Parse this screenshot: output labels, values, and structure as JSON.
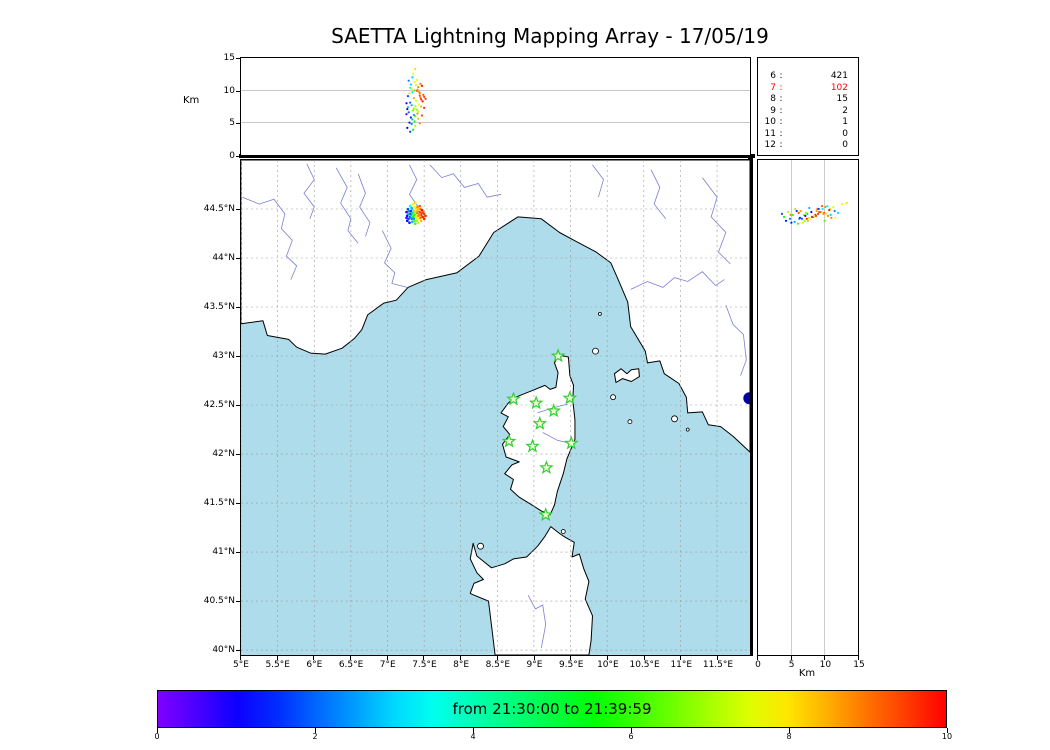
{
  "title": "SAETTA Lightning Mapping Array - 17/05/19",
  "axes": {
    "alt_label": "Km",
    "km_axis_label": "Km",
    "alt_ticks": [
      0,
      5,
      10,
      15
    ],
    "alt_grid": [
      5,
      10
    ],
    "alt_range": [
      0,
      15
    ],
    "lat_range": [
      39.95,
      45.0
    ],
    "lon_range": [
      5.0,
      11.95
    ],
    "lat_ticks": [
      {
        "v": 44.5,
        "label": "44.5°N"
      },
      {
        "v": 44.0,
        "label": "44°N"
      },
      {
        "v": 43.5,
        "label": "43.5°N"
      },
      {
        "v": 43.0,
        "label": "43°N"
      },
      {
        "v": 42.5,
        "label": "42.5°N"
      },
      {
        "v": 42.0,
        "label": "42°N"
      },
      {
        "v": 41.5,
        "label": "41.5°N"
      },
      {
        "v": 41.0,
        "label": "41°N"
      },
      {
        "v": 40.5,
        "label": "40.5°N"
      },
      {
        "v": 40.0,
        "label": "40°N"
      }
    ],
    "lon_ticks": [
      {
        "v": 5.0,
        "label": "5°E"
      },
      {
        "v": 5.5,
        "label": "5.5°E"
      },
      {
        "v": 6.0,
        "label": "6°E"
      },
      {
        "v": 6.5,
        "label": "6.5°E"
      },
      {
        "v": 7.0,
        "label": "7°E"
      },
      {
        "v": 7.5,
        "label": "7.5°E"
      },
      {
        "v": 8.0,
        "label": "8°E"
      },
      {
        "v": 8.5,
        "label": "8.5°E"
      },
      {
        "v": 9.0,
        "label": "9°E"
      },
      {
        "v": 9.5,
        "label": "9.5°E"
      },
      {
        "v": 10.0,
        "label": "10°E"
      },
      {
        "v": 10.5,
        "label": "10.5°E"
      },
      {
        "v": 11.0,
        "label": "11°E"
      },
      {
        "v": 11.5,
        "label": "11.5°E"
      }
    ]
  },
  "stats": {
    "rows": [
      {
        "label": "6",
        "value": "421",
        "color": "#000000"
      },
      {
        "label": "7",
        "value": "102",
        "color": "#ff0000"
      },
      {
        "label": "8",
        "value": "15",
        "color": "#000000"
      },
      {
        "label": "9",
        "value": "2",
        "color": "#000000"
      },
      {
        "label": "10",
        "value": "1",
        "color": "#000000"
      },
      {
        "label": "11",
        "value": "0",
        "color": "#000000"
      },
      {
        "label": "12",
        "value": "0",
        "color": "#000000"
      }
    ]
  },
  "colorbar": {
    "label": "from 21:30:00 to 21:39:59",
    "ticks": [
      0,
      2,
      4,
      6,
      8,
      10
    ],
    "min": 0,
    "max": 10,
    "hue_start": 270,
    "hue_end": 0
  },
  "chart_data": {
    "type": "scatter",
    "title": "SAETTA Lightning Mapping Array - 17/05/19",
    "time_window": "from 21:30:00 to 21:39:59",
    "colormap": "rainbow over 0-10 (minutes within time window)",
    "panels": [
      "altitude-km-vs-longitude",
      "map-latitude-vs-longitude",
      "altitude-km-vs-latitude"
    ],
    "station_counts": {
      "6": 421,
      "7": 102,
      "8": 15,
      "9": 2,
      "10": 1,
      "11": 0,
      "12": 0
    },
    "station_color": "#32cd32",
    "stations_lon_lat": [
      [
        9.33,
        43.0
      ],
      [
        8.72,
        42.56
      ],
      [
        9.03,
        42.52
      ],
      [
        9.27,
        42.44
      ],
      [
        9.49,
        42.57
      ],
      [
        9.08,
        42.31
      ],
      [
        8.66,
        42.13
      ],
      [
        8.98,
        42.08
      ],
      [
        9.51,
        42.11
      ],
      [
        9.17,
        41.86
      ],
      [
        9.16,
        41.38
      ]
    ],
    "points_lon_lat_km_time": [
      [
        7.3,
        44.47,
        9.5,
        8.2
      ],
      [
        7.33,
        44.45,
        10.2,
        7.9
      ],
      [
        7.36,
        44.48,
        8.8,
        8.5
      ],
      [
        7.4,
        44.46,
        9.9,
        9.1
      ],
      [
        7.42,
        44.43,
        10.5,
        8.8
      ],
      [
        7.38,
        44.41,
        7.6,
        7.2
      ],
      [
        7.35,
        44.44,
        6.9,
        6.5
      ],
      [
        7.31,
        44.42,
        8.1,
        2.1
      ],
      [
        7.28,
        44.45,
        7.4,
        2.8
      ],
      [
        7.44,
        44.47,
        9.2,
        9.4
      ],
      [
        7.46,
        44.44,
        8.6,
        9.7
      ],
      [
        7.39,
        44.5,
        10.8,
        8.0
      ],
      [
        7.37,
        44.52,
        11.3,
        7.5
      ],
      [
        7.34,
        44.5,
        9.7,
        3.2
      ],
      [
        7.41,
        44.52,
        10.1,
        8.9
      ],
      [
        7.45,
        44.5,
        8.9,
        9.0
      ],
      [
        7.32,
        44.48,
        5.8,
        1.5
      ],
      [
        7.36,
        44.4,
        6.2,
        2.4
      ],
      [
        7.4,
        44.38,
        7.0,
        6.8
      ],
      [
        7.43,
        44.4,
        7.8,
        7.7
      ],
      [
        7.29,
        44.4,
        6.6,
        1.9
      ],
      [
        7.27,
        44.43,
        7.1,
        1.2
      ],
      [
        7.34,
        44.37,
        5.5,
        2.6
      ],
      [
        7.38,
        44.35,
        6.0,
        6.1
      ],
      [
        7.42,
        44.36,
        6.7,
        7.3
      ],
      [
        7.46,
        44.38,
        7.5,
        8.4
      ],
      [
        7.48,
        44.42,
        8.3,
        9.8
      ],
      [
        7.5,
        44.45,
        9.0,
        9.5
      ],
      [
        7.35,
        44.55,
        12.6,
        7.8
      ],
      [
        7.38,
        44.56,
        13.3,
        8.1
      ],
      [
        7.31,
        44.53,
        10.4,
        3.5
      ],
      [
        7.28,
        44.5,
        9.1,
        1.7
      ],
      [
        7.26,
        44.47,
        8.0,
        0.9
      ],
      [
        7.33,
        44.4,
        4.8,
        2.2
      ],
      [
        7.37,
        44.44,
        5.2,
        5.8
      ],
      [
        7.41,
        44.48,
        6.4,
        8.6
      ],
      [
        7.44,
        44.53,
        9.6,
        9.2
      ],
      [
        7.47,
        44.49,
        10.7,
        9.9
      ],
      [
        7.3,
        44.36,
        5.0,
        1.4
      ],
      [
        7.26,
        44.41,
        6.3,
        0.6
      ],
      [
        7.52,
        44.43,
        8.7,
        9.6
      ],
      [
        7.49,
        44.47,
        9.3,
        9.3
      ],
      [
        7.36,
        44.46,
        7.2,
        6.9
      ],
      [
        7.39,
        44.43,
        8.4,
        7.4
      ],
      [
        7.43,
        44.45,
        9.8,
        8.7
      ],
      [
        7.32,
        44.44,
        10.9,
        2.9
      ],
      [
        7.29,
        44.48,
        11.5,
        2.3
      ],
      [
        7.35,
        44.42,
        3.9,
        5.5
      ],
      [
        7.38,
        44.47,
        4.5,
        7.0
      ],
      [
        7.42,
        44.5,
        5.6,
        8.3
      ],
      [
        7.45,
        44.41,
        11.0,
        9.0
      ],
      [
        7.27,
        44.38,
        4.2,
        1.1
      ],
      [
        7.5,
        44.4,
        7.3,
        9.7
      ],
      [
        7.34,
        44.46,
        12.0,
        3.0
      ],
      [
        7.4,
        44.41,
        11.6,
        7.6
      ],
      [
        7.37,
        44.38,
        10.0,
        6.3
      ],
      [
        7.31,
        44.45,
        3.6,
        1.8
      ],
      [
        7.44,
        44.44,
        4.9,
        8.9
      ],
      [
        7.47,
        44.46,
        6.1,
        9.4
      ],
      [
        7.33,
        44.51,
        7.7,
        2.7
      ]
    ]
  },
  "map": {
    "sea_color": "#aedcea",
    "land_color": "#ffffff",
    "coast_color": "#000000",
    "river_color": "#7b7fd4",
    "grid_color": "#999999",
    "panel_grid_color": "#b5b5b5",
    "lake": {
      "lon": 11.94,
      "lat": 42.57,
      "r": 6,
      "color": "#0000a0"
    },
    "outlines": {
      "mainland": [
        [
          5.0,
          45.0
        ],
        [
          5.0,
          43.33
        ],
        [
          5.3,
          43.36
        ],
        [
          5.36,
          43.21
        ],
        [
          5.65,
          43.17
        ],
        [
          5.76,
          43.09
        ],
        [
          5.95,
          43.03
        ],
        [
          6.15,
          43.02
        ],
        [
          6.38,
          43.08
        ],
        [
          6.55,
          43.18
        ],
        [
          6.65,
          43.27
        ],
        [
          6.73,
          43.42
        ],
        [
          6.95,
          43.54
        ],
        [
          7.12,
          43.57
        ],
        [
          7.28,
          43.7
        ],
        [
          7.53,
          43.78
        ],
        [
          7.95,
          43.85
        ],
        [
          8.25,
          44.02
        ],
        [
          8.45,
          44.26
        ],
        [
          8.78,
          44.42
        ],
        [
          9.1,
          44.4
        ],
        [
          9.35,
          44.26
        ],
        [
          9.55,
          44.18
        ],
        [
          9.85,
          44.06
        ],
        [
          10.05,
          43.95
        ],
        [
          10.15,
          43.78
        ],
        [
          10.28,
          43.55
        ],
        [
          10.32,
          43.3
        ],
        [
          10.52,
          43.05
        ],
        [
          10.55,
          42.93
        ],
        [
          10.72,
          42.95
        ],
        [
          10.78,
          42.82
        ],
        [
          10.98,
          42.72
        ],
        [
          11.08,
          42.58
        ],
        [
          11.1,
          42.42
        ],
        [
          11.3,
          42.43
        ],
        [
          11.38,
          42.3
        ],
        [
          11.55,
          42.28
        ],
        [
          11.72,
          42.18
        ],
        [
          11.95,
          42.02
        ],
        [
          11.95,
          45.0
        ]
      ],
      "corsica": [
        [
          9.34,
          43.01
        ],
        [
          9.47,
          42.99
        ],
        [
          9.49,
          42.8
        ],
        [
          9.54,
          42.7
        ],
        [
          9.53,
          42.55
        ],
        [
          9.56,
          42.35
        ],
        [
          9.56,
          42.15
        ],
        [
          9.45,
          41.95
        ],
        [
          9.4,
          41.8
        ],
        [
          9.32,
          41.62
        ],
        [
          9.28,
          41.48
        ],
        [
          9.22,
          41.38
        ],
        [
          9.1,
          41.42
        ],
        [
          8.93,
          41.5
        ],
        [
          8.8,
          41.56
        ],
        [
          8.68,
          41.64
        ],
        [
          8.72,
          41.74
        ],
        [
          8.6,
          41.8
        ],
        [
          8.7,
          41.89
        ],
        [
          8.8,
          41.92
        ],
        [
          8.62,
          41.97
        ],
        [
          8.57,
          42.1
        ],
        [
          8.67,
          42.2
        ],
        [
          8.58,
          42.28
        ],
        [
          8.65,
          42.38
        ],
        [
          8.55,
          42.42
        ],
        [
          8.65,
          42.52
        ],
        [
          8.75,
          42.58
        ],
        [
          8.95,
          42.64
        ],
        [
          9.15,
          42.7
        ],
        [
          9.22,
          42.66
        ],
        [
          9.3,
          42.68
        ],
        [
          9.33,
          42.83
        ],
        [
          9.28,
          42.93
        ]
      ],
      "sardinia": [
        [
          8.47,
          39.95
        ],
        [
          8.42,
          40.25
        ],
        [
          8.38,
          40.5
        ],
        [
          8.15,
          40.57
        ],
        [
          8.13,
          40.58
        ],
        [
          8.18,
          40.68
        ],
        [
          8.31,
          40.72
        ],
        [
          8.22,
          40.79
        ],
        [
          8.13,
          40.93
        ],
        [
          8.17,
          41.09
        ],
        [
          8.22,
          40.96
        ],
        [
          8.32,
          40.9
        ],
        [
          8.42,
          40.84
        ],
        [
          8.6,
          40.88
        ],
        [
          8.72,
          40.93
        ],
        [
          8.9,
          40.95
        ],
        [
          9.05,
          41.06
        ],
        [
          9.15,
          41.16
        ],
        [
          9.23,
          41.26
        ],
        [
          9.35,
          41.19
        ],
        [
          9.43,
          41.15
        ],
        [
          9.55,
          41.1
        ],
        [
          9.52,
          40.95
        ],
        [
          9.62,
          40.98
        ],
        [
          9.68,
          40.83
        ],
        [
          9.75,
          40.7
        ],
        [
          9.7,
          40.52
        ],
        [
          9.8,
          40.35
        ],
        [
          9.78,
          40.1
        ],
        [
          9.75,
          39.95
        ]
      ],
      "elba": [
        [
          10.1,
          42.82
        ],
        [
          10.19,
          42.87
        ],
        [
          10.27,
          42.82
        ],
        [
          10.33,
          42.86
        ],
        [
          10.43,
          42.87
        ],
        [
          10.44,
          42.79
        ],
        [
          10.33,
          42.74
        ],
        [
          10.21,
          42.77
        ],
        [
          10.12,
          42.73
        ]
      ]
    },
    "islands": [
      [
        9.84,
        43.05,
        3
      ],
      [
        9.9,
        43.43,
        1.5
      ],
      [
        10.08,
        42.58,
        2.5
      ],
      [
        10.31,
        42.33,
        2
      ],
      [
        10.92,
        42.36,
        3
      ],
      [
        11.1,
        42.25,
        1.5
      ],
      [
        8.27,
        41.06,
        3
      ],
      [
        9.4,
        41.21,
        2
      ]
    ],
    "rivers": [
      [
        [
          5.02,
          44.62
        ],
        [
          5.25,
          44.55
        ],
        [
          5.45,
          44.6
        ],
        [
          5.6,
          44.45
        ],
        [
          5.55,
          44.3
        ],
        [
          5.7,
          44.18
        ],
        [
          5.62,
          44.02
        ],
        [
          5.76,
          43.92
        ],
        [
          5.68,
          43.78
        ]
      ],
      [
        [
          6.93,
          44.28
        ],
        [
          7.05,
          44.1
        ],
        [
          6.96,
          43.95
        ],
        [
          7.1,
          43.85
        ],
        [
          7.06,
          43.74
        ],
        [
          7.27,
          43.7
        ]
      ],
      [
        [
          6.3,
          44.92
        ],
        [
          6.45,
          44.72
        ],
        [
          6.36,
          44.56
        ],
        [
          6.5,
          44.4
        ],
        [
          6.46,
          44.28
        ],
        [
          6.6,
          44.15
        ]
      ],
      [
        [
          7.58,
          44.95
        ],
        [
          7.74,
          44.82
        ],
        [
          7.9,
          44.86
        ],
        [
          8.05,
          44.72
        ],
        [
          8.24,
          44.76
        ],
        [
          8.36,
          44.62
        ],
        [
          8.55,
          44.65
        ]
      ],
      [
        [
          5.9,
          44.96
        ],
        [
          6.0,
          44.8
        ],
        [
          5.86,
          44.66
        ],
        [
          6.0,
          44.52
        ],
        [
          5.94,
          44.4
        ]
      ],
      [
        [
          6.6,
          44.86
        ],
        [
          6.7,
          44.66
        ],
        [
          6.62,
          44.52
        ],
        [
          6.76,
          44.36
        ],
        [
          6.7,
          44.22
        ]
      ],
      [
        [
          10.32,
          43.68
        ],
        [
          10.55,
          43.76
        ],
        [
          10.76,
          43.7
        ],
        [
          10.92,
          43.8
        ],
        [
          11.1,
          43.76
        ],
        [
          11.3,
          43.86
        ],
        [
          11.48,
          43.72
        ],
        [
          11.6,
          43.78
        ]
      ],
      [
        [
          11.3,
          44.82
        ],
        [
          11.5,
          44.62
        ],
        [
          11.42,
          44.42
        ],
        [
          11.62,
          44.26
        ],
        [
          11.52,
          44.06
        ],
        [
          11.68,
          43.94
        ]
      ],
      [
        [
          11.62,
          43.52
        ],
        [
          11.72,
          43.32
        ],
        [
          11.86,
          43.22
        ],
        [
          11.9,
          42.96
        ],
        [
          11.82,
          42.8
        ]
      ],
      [
        [
          8.92,
          40.56
        ],
        [
          9.02,
          40.42
        ],
        [
          9.12,
          40.46
        ],
        [
          9.16,
          40.26
        ],
        [
          9.1,
          40.02
        ]
      ],
      [
        [
          9.05,
          42.42
        ],
        [
          9.25,
          42.47
        ],
        [
          9.46,
          42.51
        ]
      ],
      [
        [
          9.12,
          42.22
        ],
        [
          9.32,
          42.14
        ],
        [
          9.55,
          42.1
        ]
      ],
      [
        [
          7.3,
          44.95
        ],
        [
          7.4,
          44.8
        ],
        [
          7.3,
          44.65
        ],
        [
          7.42,
          44.52
        ]
      ],
      [
        [
          10.6,
          44.9
        ],
        [
          10.72,
          44.72
        ],
        [
          10.64,
          44.55
        ],
        [
          10.8,
          44.4
        ]
      ],
      [
        [
          9.8,
          44.95
        ],
        [
          9.95,
          44.8
        ],
        [
          9.88,
          44.62
        ]
      ]
    ]
  }
}
